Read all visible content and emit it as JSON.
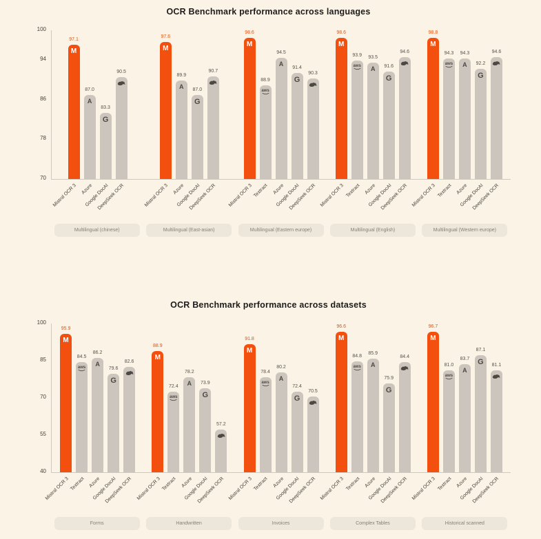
{
  "page": {
    "background_color": "#FBF4E6"
  },
  "colors": {
    "mistral_bar": "#F3500F",
    "default_bar": "#CCC5BE",
    "mistral_value_label": "#DE5415",
    "default_value_label": "#55504B",
    "icon_on_orange": "#FFFFFF",
    "icon_on_gray": "#4D4841",
    "axis_line": "#CFC8BC",
    "tick_text": "#45403A",
    "title_text": "#1D1C1A",
    "pill_bg": "#EDE7DB",
    "pill_text": "#847E74"
  },
  "chart_data": [
    {
      "type": "bar",
      "title": "OCR Benchmark performance across languages",
      "ylabel": "",
      "xlabel": "",
      "ylim": [
        70,
        100
      ],
      "yticks": [
        70,
        78,
        86,
        94,
        100
      ],
      "grid": false,
      "legend": "none",
      "groups": [
        {
          "label": "Multilingual (chinese)",
          "bars": [
            {
              "model": "Mistral OCR 3",
              "vendor": "mistral",
              "value": 97.1
            },
            {
              "model": "Azure",
              "vendor": "azure",
              "value": 87.0
            },
            {
              "model": "Google DocAI",
              "vendor": "google",
              "value": 83.3
            },
            {
              "model": "DeepSeek OCR",
              "vendor": "deepseek",
              "value": 90.5
            }
          ]
        },
        {
          "label": "Multilingual (East-asian)",
          "bars": [
            {
              "model": "Mistral OCR 3",
              "vendor": "mistral",
              "value": 97.6
            },
            {
              "model": "Azure",
              "vendor": "azure",
              "value": 89.9
            },
            {
              "model": "Google DocAI",
              "vendor": "google",
              "value": 87.0
            },
            {
              "model": "DeepSeek OCR",
              "vendor": "deepseek",
              "value": 90.7
            }
          ]
        },
        {
          "label": "Multilingual (Eastern europe)",
          "bars": [
            {
              "model": "Mistral OCR 3",
              "vendor": "mistral",
              "value": 98.6
            },
            {
              "model": "Textract",
              "vendor": "textract",
              "value": 88.9
            },
            {
              "model": "Azure",
              "vendor": "azure",
              "value": 94.5
            },
            {
              "model": "Google DocAI",
              "vendor": "google",
              "value": 91.4
            },
            {
              "model": "DeepSeek OCR",
              "vendor": "deepseek",
              "value": 90.3
            }
          ]
        },
        {
          "label": "Multilingual (English)",
          "bars": [
            {
              "model": "Mistral OCR 3",
              "vendor": "mistral",
              "value": 98.6
            },
            {
              "model": "Textract",
              "vendor": "textract",
              "value": 93.9
            },
            {
              "model": "Azure",
              "vendor": "azure",
              "value": 93.5
            },
            {
              "model": "Google DocAI",
              "vendor": "google",
              "value": 91.6
            },
            {
              "model": "DeepSeek OCR",
              "vendor": "deepseek",
              "value": 94.6
            }
          ]
        },
        {
          "label": "Multilingual (Western europe)",
          "bars": [
            {
              "model": "Mistral OCR 3",
              "vendor": "mistral",
              "value": 98.8
            },
            {
              "model": "Textract",
              "vendor": "textract",
              "value": 94.3
            },
            {
              "model": "Azure",
              "vendor": "azure",
              "value": 94.3
            },
            {
              "model": "Google DocAI",
              "vendor": "google",
              "value": 92.2
            },
            {
              "model": "DeepSeek OCR",
              "vendor": "deepseek",
              "value": 94.6
            }
          ]
        }
      ]
    },
    {
      "type": "bar",
      "title": "OCR Benchmark performance across datasets",
      "ylabel": "",
      "xlabel": "",
      "ylim": [
        40,
        100
      ],
      "yticks": [
        40,
        55,
        70,
        85,
        100
      ],
      "grid": false,
      "legend": "none",
      "groups": [
        {
          "label": "Forms",
          "bars": [
            {
              "model": "Mistral OCR 3",
              "vendor": "mistral",
              "value": 95.9
            },
            {
              "model": "Textract",
              "vendor": "textract",
              "value": 84.5
            },
            {
              "model": "Azure",
              "vendor": "azure",
              "value": 86.2
            },
            {
              "model": "Google DocAI",
              "vendor": "google",
              "value": 79.6
            },
            {
              "model": "DeepSeek OCR",
              "vendor": "deepseek",
              "value": 82.6
            }
          ]
        },
        {
          "label": "Handwritten",
          "bars": [
            {
              "model": "Mistral OCR 3",
              "vendor": "mistral",
              "value": 88.9
            },
            {
              "model": "Textract",
              "vendor": "textract",
              "value": 72.4
            },
            {
              "model": "Azure",
              "vendor": "azure",
              "value": 78.2
            },
            {
              "model": "Google DocAI",
              "vendor": "google",
              "value": 73.9
            },
            {
              "model": "DeepSeek OCR",
              "vendor": "deepseek",
              "value": 57.2
            }
          ]
        },
        {
          "label": "Invoices",
          "bars": [
            {
              "model": "Mistral OCR 3",
              "vendor": "mistral",
              "value": 91.8
            },
            {
              "model": "Textract",
              "vendor": "textract",
              "value": 78.4
            },
            {
              "model": "Azure",
              "vendor": "azure",
              "value": 80.2
            },
            {
              "model": "Google DocAI",
              "vendor": "google",
              "value": 72.4
            },
            {
              "model": "DeepSeek OCR",
              "vendor": "deepseek",
              "value": 70.5
            }
          ]
        },
        {
          "label": "Complex Tables",
          "bars": [
            {
              "model": "Mistral OCR 3",
              "vendor": "mistral",
              "value": 96.6
            },
            {
              "model": "Textract",
              "vendor": "textract",
              "value": 84.8
            },
            {
              "model": "Azure",
              "vendor": "azure",
              "value": 85.9
            },
            {
              "model": "Google DocAI",
              "vendor": "google",
              "value": 75.9
            },
            {
              "model": "DeepSeek OCR",
              "vendor": "deepseek",
              "value": 84.4
            }
          ]
        },
        {
          "label": "Historical scanned",
          "bars": [
            {
              "model": "Mistral OCR 3",
              "vendor": "mistral",
              "value": 96.7
            },
            {
              "model": "Textract",
              "vendor": "textract",
              "value": 81.0
            },
            {
              "model": "Azure",
              "vendor": "azure",
              "value": 83.7
            },
            {
              "model": "Google DocAI",
              "vendor": "google",
              "value": 87.1
            },
            {
              "model": "DeepSeek OCR",
              "vendor": "deepseek",
              "value": 81.1
            }
          ]
        }
      ]
    }
  ]
}
